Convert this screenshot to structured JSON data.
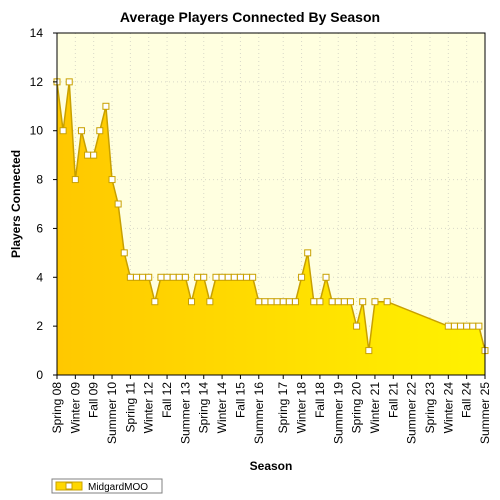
{
  "chart_data": {
    "type": "area",
    "title": "Average Players Connected By Season",
    "xlabel": "Season",
    "ylabel": "Players Connected",
    "ylim": [
      0,
      14
    ],
    "yticks": [
      0,
      2,
      4,
      6,
      8,
      10,
      12,
      14
    ],
    "grid": true,
    "legend_position": "bottom-left",
    "x_tick_labels": [
      "Spring 08",
      "Winter 09",
      "Fall 09",
      "Summer 10",
      "Spring 11",
      "Winter 12",
      "Fall 12",
      "Summer 13",
      "Spring 14",
      "Winter 14",
      "Fall 15",
      "Summer 16",
      "Spring 17",
      "Winter 18",
      "Fall 18",
      "Summer 19",
      "Spring 20",
      "Winter 21",
      "Fall 21",
      "Summer 22",
      "Spring 23",
      "Winter 24",
      "Fall 24",
      "Summer 25"
    ],
    "x_count": 71,
    "colors": {
      "fill": "#ffd700",
      "line": "#c8a000",
      "plot_background": "#ffffe0",
      "marker_fill": "#ffffff"
    },
    "series": [
      {
        "name": "MidgardMOO",
        "points": [
          [
            0,
            12
          ],
          [
            1,
            10
          ],
          [
            2,
            12
          ],
          [
            3,
            8
          ],
          [
            4,
            10
          ],
          [
            5,
            9
          ],
          [
            6,
            9
          ],
          [
            7,
            10
          ],
          [
            8,
            11
          ],
          [
            9,
            8
          ],
          [
            10,
            7
          ],
          [
            11,
            5
          ],
          [
            12,
            4
          ],
          [
            13,
            4
          ],
          [
            14,
            4
          ],
          [
            15,
            4
          ],
          [
            16,
            3
          ],
          [
            17,
            4
          ],
          [
            18,
            4
          ],
          [
            19,
            4
          ],
          [
            20,
            4
          ],
          [
            21,
            4
          ],
          [
            22,
            3
          ],
          [
            23,
            4
          ],
          [
            24,
            4
          ],
          [
            25,
            3
          ],
          [
            26,
            4
          ],
          [
            27,
            4
          ],
          [
            28,
            4
          ],
          [
            29,
            4
          ],
          [
            30,
            4
          ],
          [
            31,
            4
          ],
          [
            32,
            4
          ],
          [
            33,
            3
          ],
          [
            34,
            3
          ],
          [
            35,
            3
          ],
          [
            36,
            3
          ],
          [
            37,
            3
          ],
          [
            38,
            3
          ],
          [
            39,
            3
          ],
          [
            40,
            4
          ],
          [
            41,
            5
          ],
          [
            42,
            3
          ],
          [
            43,
            3
          ],
          [
            44,
            4
          ],
          [
            45,
            3
          ],
          [
            46,
            3
          ],
          [
            47,
            3
          ],
          [
            48,
            3
          ],
          [
            49,
            2
          ],
          [
            50,
            3
          ],
          [
            51,
            1
          ],
          [
            52,
            3
          ],
          [
            54,
            3
          ],
          [
            64,
            2
          ],
          [
            65,
            2
          ],
          [
            66,
            2
          ],
          [
            67,
            2
          ],
          [
            68,
            2
          ],
          [
            69,
            2
          ],
          [
            70,
            1
          ]
        ]
      }
    ]
  }
}
